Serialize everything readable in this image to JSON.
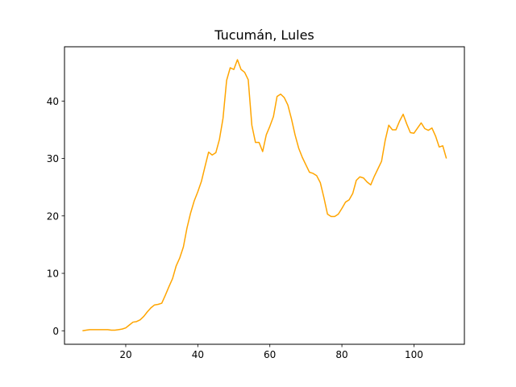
{
  "chart_data": {
    "type": "line",
    "title": "Tucumán, Lules",
    "xlabel": "",
    "ylabel": "",
    "xlim": [
      3,
      114
    ],
    "ylim": [
      -2.35,
      49.45
    ],
    "xticks": [
      20,
      40,
      60,
      80,
      100
    ],
    "yticks": [
      0,
      10,
      20,
      30,
      40
    ],
    "grid": false,
    "series": [
      {
        "color": "#ffa500",
        "x": [
          8,
          9,
          10,
          11,
          12,
          13,
          14,
          15,
          16,
          17,
          18,
          19,
          20,
          21,
          22,
          23,
          24,
          25,
          26,
          27,
          28,
          29,
          30,
          31,
          32,
          33,
          34,
          35,
          36,
          37,
          38,
          39,
          40,
          41,
          42,
          43,
          44,
          45,
          46,
          47,
          48,
          49,
          50,
          51,
          52,
          53,
          54,
          55,
          56,
          57,
          58,
          59,
          60,
          61,
          62,
          63,
          64,
          65,
          66,
          67,
          68,
          69,
          70,
          71,
          72,
          73,
          74,
          75,
          76,
          77,
          78,
          79,
          80,
          81,
          82,
          83,
          84,
          85,
          86,
          87,
          88,
          89,
          90,
          91,
          92,
          93,
          94,
          95,
          96,
          97,
          98,
          99,
          100,
          101,
          102,
          103,
          104,
          105,
          106,
          107,
          108,
          109
        ],
        "y": [
          0.0,
          0.1,
          0.2,
          0.2,
          0.2,
          0.2,
          0.2,
          0.2,
          0.1,
          0.1,
          0.2,
          0.3,
          0.5,
          1.0,
          1.5,
          1.6,
          1.9,
          2.5,
          3.3,
          4.0,
          4.5,
          4.6,
          4.8,
          6.2,
          7.7,
          9.1,
          11.3,
          12.7,
          14.6,
          17.9,
          20.5,
          22.6,
          24.2,
          26.0,
          28.6,
          31.1,
          30.6,
          31.0,
          33.3,
          37.0,
          43.6,
          45.8,
          45.5,
          47.2,
          45.5,
          45.0,
          43.7,
          35.8,
          32.8,
          32.8,
          31.2,
          34.1,
          35.6,
          37.3,
          40.8,
          41.2,
          40.6,
          39.3,
          36.9,
          34.1,
          31.8,
          30.2,
          28.9,
          27.6,
          27.4,
          27.0,
          25.8,
          23.2,
          20.3,
          19.9,
          19.9,
          20.3,
          21.3,
          22.4,
          22.8,
          23.9,
          26.2,
          26.8,
          26.6,
          25.9,
          25.4,
          26.9,
          28.2,
          29.5,
          33.1,
          35.8,
          35.0,
          35.0,
          36.5,
          37.7,
          36.0,
          34.5,
          34.4,
          35.3,
          36.2,
          35.2,
          34.9,
          35.3,
          33.9,
          32.0,
          32.2,
          30.0
        ]
      }
    ]
  }
}
